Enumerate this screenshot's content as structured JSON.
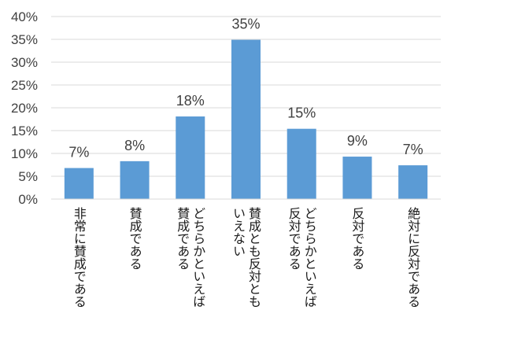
{
  "chart_data": {
    "type": "bar",
    "categories": [
      "非常に賛成である",
      "賛成である",
      "どちらかといえば賛成である",
      "賛成とも反対ともいえない",
      "どちらかといえば反対である",
      "反対である",
      "絶対に反対である"
    ],
    "category_lines": [
      [
        "非常に賛成である"
      ],
      [
        "賛成である"
      ],
      [
        "どちらかといえば",
        "賛成である"
      ],
      [
        "賛成とも反対とも",
        "いえない"
      ],
      [
        "どちらかといえば",
        "反対である"
      ],
      [
        "反対である"
      ],
      [
        "絶対に反対である"
      ]
    ],
    "values": [
      7,
      8,
      18,
      35,
      15,
      9,
      7
    ],
    "bar_values": [
      6.8,
      8.3,
      18.1,
      34.9,
      15.4,
      9.3,
      7.4
    ],
    "data_labels": [
      "7%",
      "8%",
      "18%",
      "35%",
      "15%",
      "9%",
      "7%"
    ],
    "y_ticks": [
      "0%",
      "5%",
      "10%",
      "15%",
      "20%",
      "25%",
      "30%",
      "35%",
      "40%"
    ],
    "ylim": [
      0,
      40
    ],
    "y_step": 5,
    "grid": true,
    "legend": "none",
    "bar_color": "#5b9bd5",
    "grid_color": "#d9d9d9",
    "title": "",
    "xlabel": "",
    "ylabel": ""
  }
}
